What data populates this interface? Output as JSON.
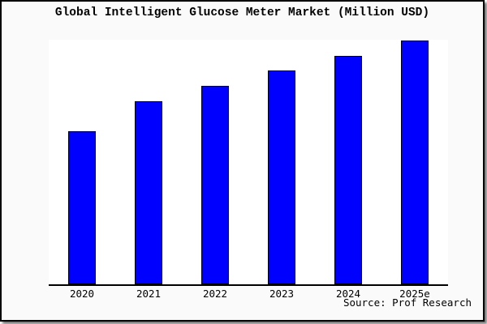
{
  "window": {
    "background_color": "#fafafa",
    "border_color": "#000000",
    "plot_background_color": "#ffffff"
  },
  "chart": {
    "title": "Global Intelligent Glucose Meter Market (Million USD)",
    "source": "Source: Prof Research",
    "bar_color": "#0000ff",
    "bar_border_color": "#000000",
    "axis_color": "#000000"
  },
  "chart_data": {
    "type": "bar",
    "title": "Global Intelligent Glucose Meter Market (Million USD)",
    "categories": [
      "2020",
      "2021",
      "2022",
      "2023",
      "2024",
      "2025e"
    ],
    "values": [
      62.8,
      75.1,
      81.4,
      87.7,
      93.7,
      100
    ],
    "values_unit": "relative bar height, % of 2025e bar (y-axis has no tick labels in chart)",
    "xlabel": "",
    "ylabel": "",
    "ylim": [
      0,
      100.3
    ],
    "grid": false,
    "legend": false,
    "annotation": "Source: Prof Research"
  }
}
